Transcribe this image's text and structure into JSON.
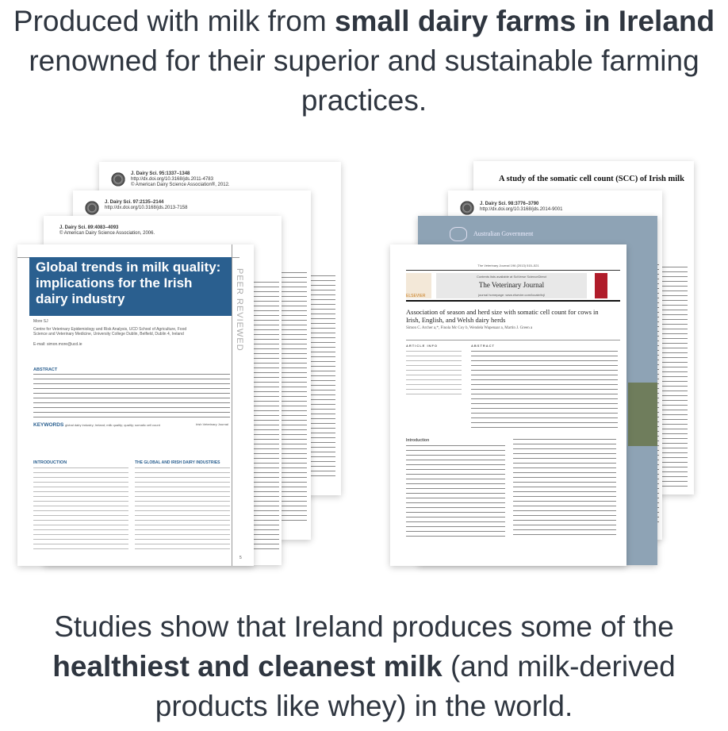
{
  "headline_top": {
    "part1": "Produced with milk from ",
    "bold1": "small dairy farms in Ireland",
    "part2": " renowned for their superior and sustainable farming practices."
  },
  "headline_bottom": {
    "part1": "Studies show that Ireland produces some of the ",
    "bold1": "healthiest and cleanest milk",
    "part2": " (and milk-derived products like whey) in the world."
  },
  "left_stack": {
    "paper1": {
      "journal": "J. Dairy Sci. 95:1337–1348",
      "doi": "http://dx.doi.org/10.3168/jds.2011-4783",
      "copyright": "© American Dairy Science Association®, 2012."
    },
    "paper2": {
      "journal": "J. Dairy Sci. 97:2135–2144",
      "doi": "http://dx.doi.org/10.3168/jds.2013-7158"
    },
    "paper3": {
      "journal": "J. Dairy Sci. 89:4083–4093",
      "copyright": "© American Dairy Science Association, 2006."
    },
    "front": {
      "title": "Global trends in milk quality: implications for the Irish dairy industry",
      "peer": "PEER REVIEWED",
      "author": "More SJ",
      "affiliation": "Centre for Veterinary Epidemiology and Risk Analysis, UCD School of Agriculture, Food Science and Veterinary Medicine, University College Dublin, Belfield, Dublin 4, Ireland",
      "email": "E-mail: simon.more@ucd.ie",
      "abstract_heading": "ABSTRACT",
      "keywords_heading": "KEYWORDS",
      "keywords": "global dairy industry; Ireland; milk quality; quality; somatic cell count",
      "journal_name": "Irish Veterinary Journal",
      "intro_heading": "INTRODUCTION",
      "section2_heading": "THE GLOBAL AND IRISH DAIRY INDUSTRIES",
      "page": "5"
    }
  },
  "right_stack": {
    "paper1": {
      "title": "A study of the somatic cell count (SCC) of Irish milk"
    },
    "paper2": {
      "journal": "J. Dairy Sci. 98:3776–3790",
      "doi": "http://dx.doi.org/10.3168/jds.2014-9001"
    },
    "paper3": {
      "org": "Australian Government"
    },
    "front": {
      "citation": "The Veterinary Journal 196 (2013) 515–521",
      "contents": "Contents lists available at SciVerse ScienceDirect",
      "journal": "The Veterinary Journal",
      "homepage": "journal homepage: www.elsevier.com/locate/tvjl",
      "publisher": "ELSEVIER",
      "title": "Association of season and herd size with somatic cell count for cows in Irish, English, and Welsh dairy herds",
      "authors": "Simon C. Archer a,*, Finola Mc Coy b, Wendela Wapenaar a, Martin J. Green a",
      "article_info": "ARTICLE INFO",
      "abstract": "ABSTRACT",
      "intro": "Introduction"
    }
  }
}
